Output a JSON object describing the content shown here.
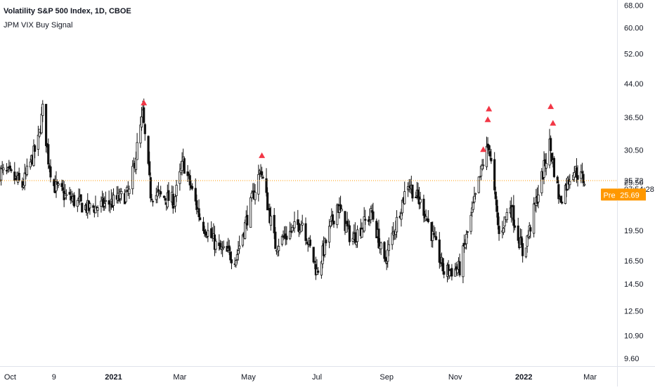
{
  "header": {
    "symbol_title": "Volatility S&P 500 Index, 1D, CBOE",
    "indicator_name": "JPM VIX Buy Signal"
  },
  "price_scale": {
    "last_price_label": "25.72",
    "countdown_label": "07:54:28",
    "premarket_tag": "Pre",
    "premarket_price": "25.69"
  },
  "colors": {
    "candle": "#111111",
    "signal": "#f23645",
    "last_price_line": "#ff9800",
    "premarket": "#ff9800",
    "axis_text": "#131722",
    "border": "#e0e3eb"
  },
  "chart_data": {
    "type": "candlestick",
    "title": "Volatility S&P 500 Index, 1D, CBOE",
    "y_scale": "log",
    "ylim": [
      9.2,
      70
    ],
    "y_ticks": [
      "68.00",
      "60.00",
      "52.00",
      "44.00",
      "36.50",
      "30.50",
      "25.50",
      "19.50",
      "16.50",
      "14.50",
      "12.50",
      "10.90",
      "9.60"
    ],
    "x_ticks": [
      "Oct",
      "9",
      "2021",
      "Mar",
      "May",
      "Jul",
      "Sep",
      "Nov",
      "2022",
      "Mar"
    ],
    "x_tick_dates": [
      "2020-10-01",
      "2020-11-09",
      "2021-01-01",
      "2021-03-01",
      "2021-05-01",
      "2021-07-01",
      "2021-09-01",
      "2021-11-01",
      "2022-01-01",
      "2022-03-01"
    ],
    "x_tick_bold": [
      false,
      false,
      true,
      false,
      false,
      false,
      false,
      false,
      true,
      false
    ],
    "xlim": [
      "2020-09-22",
      "2022-03-25"
    ],
    "grid": false,
    "last_price": 25.72,
    "premarket_price": 25.69,
    "close_series_approx": [
      [
        "2020-09-22",
        27.0
      ],
      [
        "2020-10-01",
        26.5
      ],
      [
        "2020-10-12",
        25.0
      ],
      [
        "2020-10-26",
        32.0
      ],
      [
        "2020-10-30",
        38.0
      ],
      [
        "2020-11-04",
        29.0
      ],
      [
        "2020-11-09",
        25.0
      ],
      [
        "2020-11-20",
        23.5
      ],
      [
        "2020-12-10",
        22.0
      ],
      [
        "2020-12-31",
        22.8
      ],
      [
        "2021-01-15",
        24.0
      ],
      [
        "2021-01-27",
        37.0
      ],
      [
        "2021-02-03",
        24.0
      ],
      [
        "2021-02-24",
        23.0
      ],
      [
        "2021-03-04",
        28.5
      ],
      [
        "2021-03-20",
        20.5
      ],
      [
        "2021-04-05",
        17.5
      ],
      [
        "2021-04-20",
        16.8
      ],
      [
        "2021-05-12",
        27.5
      ],
      [
        "2021-05-25",
        18.0
      ],
      [
        "2021-06-18",
        20.5
      ],
      [
        "2021-07-01",
        15.5
      ],
      [
        "2021-07-19",
        22.5
      ],
      [
        "2021-08-01",
        18.5
      ],
      [
        "2021-08-19",
        21.5
      ],
      [
        "2021-08-30",
        16.2
      ],
      [
        "2021-09-20",
        25.5
      ],
      [
        "2021-10-04",
        22.0
      ],
      [
        "2021-10-22",
        15.5
      ],
      [
        "2021-11-05",
        15.8
      ],
      [
        "2021-11-26",
        28.5
      ],
      [
        "2021-12-01",
        31.5
      ],
      [
        "2021-12-10",
        19.0
      ],
      [
        "2021-12-20",
        22.5
      ],
      [
        "2021-12-31",
        17.2
      ],
      [
        "2022-01-06",
        19.5
      ],
      [
        "2022-01-24",
        31.5
      ],
      [
        "2022-02-02",
        23.0
      ],
      [
        "2022-02-14",
        27.5
      ],
      [
        "2022-02-24",
        25.7
      ]
    ],
    "signals": [
      {
        "date": "2021-01-28",
        "price": 39.5
      },
      {
        "date": "2021-05-13",
        "price": 29.5
      },
      {
        "date": "2021-11-26",
        "price": 30.5
      },
      {
        "date": "2021-11-30",
        "price": 36.0
      },
      {
        "date": "2021-12-01",
        "price": 38.2
      },
      {
        "date": "2022-01-25",
        "price": 38.7
      },
      {
        "date": "2022-01-27",
        "price": 35.3
      }
    ]
  }
}
